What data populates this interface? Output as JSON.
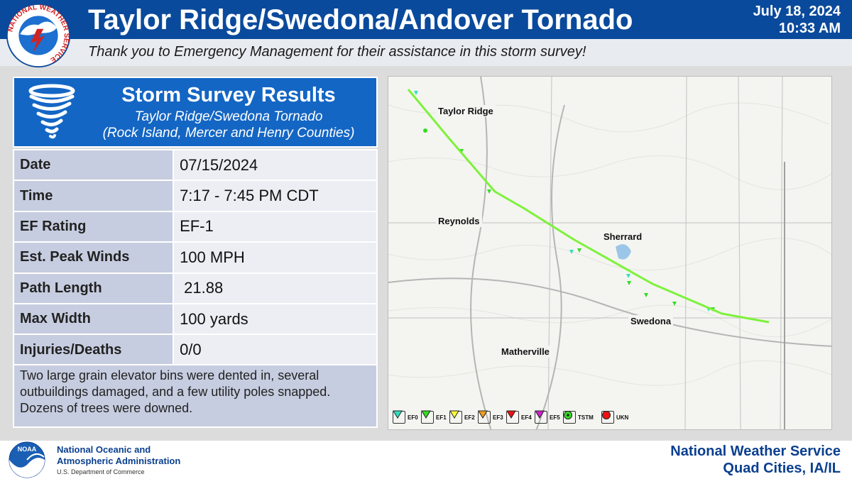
{
  "header": {
    "title": "Taylor Ridge/Swedona/Andover Tornado",
    "date": "July 18, 2024",
    "time": "10:33 AM",
    "logo_text": "NATIONAL WEATHER SERVICE",
    "subtitle": "Thank you to Emergency Management for their assistance in this storm survey!"
  },
  "card": {
    "title": "Storm Survey Results",
    "subtitle_line1": "Taylor Ridge/Swedona Tornado",
    "subtitle_line2": "(Rock Island, Mercer and Henry Counties)",
    "rows": [
      {
        "label": "Date",
        "value": "07/15/2024"
      },
      {
        "label": "Time",
        "value": "7:17 - 7:45 PM CDT"
      },
      {
        "label": "EF Rating",
        "value": "EF-1"
      },
      {
        "label": "Est. Peak Winds",
        "value": "100 MPH"
      },
      {
        "label": "Path Length",
        "value": " 21.88"
      },
      {
        "label": "Max Width",
        "value": "100 yards"
      },
      {
        "label": "Injuries/Deaths",
        "value": "0/0"
      }
    ],
    "description": "Two large grain elevator bins were dented in, several outbuildings damaged, and a few utility poles snapped. Dozens of trees were downed."
  },
  "map": {
    "towns": [
      "Taylor Ridge",
      "Reynolds",
      "Sherrard",
      "Swedona",
      "Matherville"
    ],
    "path_color": "#7df23a",
    "legend": [
      {
        "label": "EF0",
        "color": "#30e0c0",
        "icon": "triangle-down-icon"
      },
      {
        "label": "EF1",
        "color": "#33dd22",
        "icon": "triangle-down-icon"
      },
      {
        "label": "EF2",
        "color": "#ffff33",
        "icon": "triangle-down-icon"
      },
      {
        "label": "EF3",
        "color": "#f0a020",
        "icon": "triangle-down-icon"
      },
      {
        "label": "EF4",
        "color": "#ee1111",
        "icon": "triangle-down-icon"
      },
      {
        "label": "EF5",
        "color": "#cc22cc",
        "icon": "triangle-down-icon"
      },
      {
        "label": "TSTM",
        "color": "#33dd22",
        "icon": "circle-icon"
      },
      {
        "label": "UKN",
        "color": "#ee1111",
        "icon": "circle-icon"
      }
    ]
  },
  "footer": {
    "logo_text": "NOAA",
    "agency_line1": "National Oceanic and",
    "agency_line2": "Atmospheric Administration",
    "department": "U.S. Department of Commerce",
    "office_line1": "National Weather Service",
    "office_line2": "Quad Cities, IA/IL"
  }
}
